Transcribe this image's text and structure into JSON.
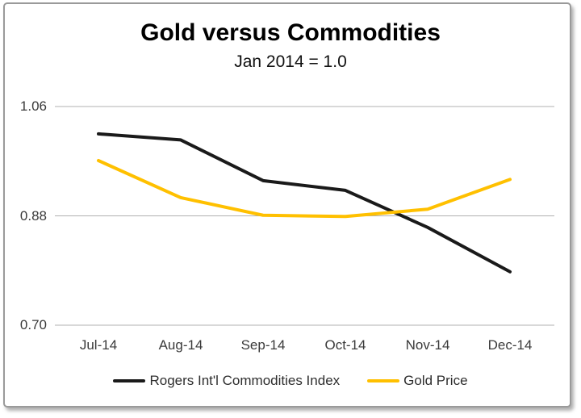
{
  "chart_data": {
    "type": "line",
    "title": "Gold versus Commodities",
    "subtitle": "Jan 2014 = 1.0",
    "categories": [
      "Jul-14",
      "Aug-14",
      "Sep-14",
      "Oct-14",
      "Nov-14",
      "Dec-14"
    ],
    "series": [
      {
        "name": "Rogers Int'l Commodities Index",
        "color": "#1a1a1a",
        "values": [
          1.015,
          1.005,
          0.938,
          0.922,
          0.861,
          0.788
        ]
      },
      {
        "name": "Gold Price",
        "color": "#ffc000",
        "values": [
          0.971,
          0.91,
          0.881,
          0.879,
          0.891,
          0.94
        ]
      }
    ],
    "yticks": [
      {
        "label": "1.06",
        "value": 1.06
      },
      {
        "label": "0.88",
        "value": 0.88
      },
      {
        "label": "0.70",
        "value": 0.7
      }
    ],
    "ylim": [
      0.7,
      1.06
    ],
    "xlabel": "",
    "ylabel": "",
    "grid": true,
    "legend_position": "bottom",
    "gridline_color": "#b0b0b0",
    "axis_label_color": "#3a3a3a",
    "frame_border_color": "#9a9a9a",
    "background_color": "#ffffff"
  }
}
